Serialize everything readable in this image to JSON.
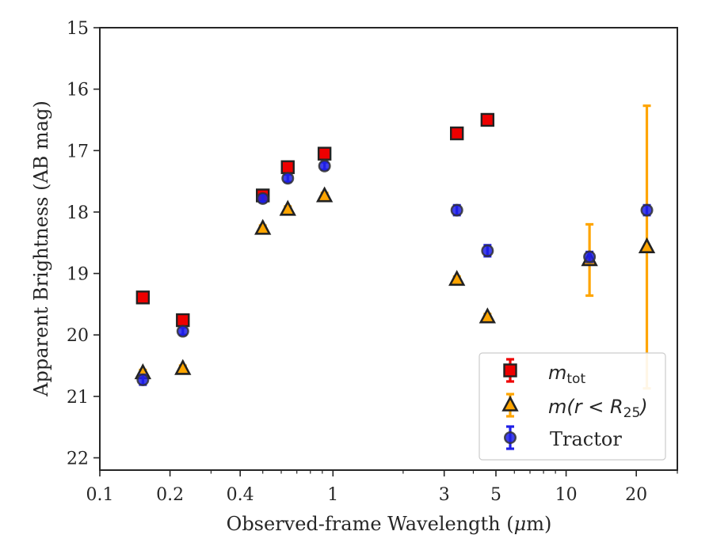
{
  "colors": {
    "mtot": "#ee0000",
    "mr25": "#ffa500",
    "tractor": "#1f1fe6",
    "mtot_err": "#ee0000",
    "mr25_err": "#ffa500",
    "tractor_err": "#1f1fe6",
    "edge": "#222222",
    "axis": "#262626"
  },
  "chart_data": {
    "type": "scatter",
    "xlabel_prefix": "Observed-frame Wavelength (",
    "xlabel_unit_mu": "μ",
    "xlabel_suffix": "m)",
    "ylabel": "Apparent Brightness (AB mag)",
    "xscale": "log",
    "xlim": [
      0.1,
      30
    ],
    "ylim": [
      22.2,
      15
    ],
    "y_inverted": true,
    "grid": false,
    "legend_position": "lower-right",
    "x_ticks": [
      {
        "value": 0.1,
        "label": "0.1"
      },
      {
        "value": 0.2,
        "label": "0.2"
      },
      {
        "value": 0.4,
        "label": "0.4"
      },
      {
        "value": 1,
        "label": "1"
      },
      {
        "value": 3,
        "label": "3"
      },
      {
        "value": 5,
        "label": "5"
      },
      {
        "value": 10,
        "label": "10"
      },
      {
        "value": 20,
        "label": "20"
      }
    ],
    "y_ticks": [
      {
        "value": 15,
        "label": "15"
      },
      {
        "value": 16,
        "label": "16"
      },
      {
        "value": 17,
        "label": "17"
      },
      {
        "value": 18,
        "label": "18"
      },
      {
        "value": 19,
        "label": "19"
      },
      {
        "value": 20,
        "label": "20"
      },
      {
        "value": 21,
        "label": "21"
      },
      {
        "value": 22,
        "label": "22"
      }
    ],
    "series": [
      {
        "key": "mtot",
        "marker": "square",
        "legend_main": "m",
        "legend_sub": "tot",
        "points": [
          {
            "x": 0.153,
            "y": 19.39,
            "err": 0.05
          },
          {
            "x": 0.227,
            "y": 19.76,
            "err": 0.05
          },
          {
            "x": 0.5,
            "y": 17.73,
            "err": 0.05
          },
          {
            "x": 0.64,
            "y": 17.27,
            "err": 0.05
          },
          {
            "x": 0.92,
            "y": 17.05,
            "err": 0.05
          },
          {
            "x": 3.4,
            "y": 16.72,
            "err": 0.05
          },
          {
            "x": 4.6,
            "y": 16.5,
            "err": 0.05
          }
        ]
      },
      {
        "key": "mr25",
        "marker": "triangle",
        "legend_main": "m(r < R",
        "legend_sub": "25",
        "legend_end": ")",
        "points": [
          {
            "x": 0.153,
            "y": 20.62,
            "err": 0.05
          },
          {
            "x": 0.227,
            "y": 20.55,
            "err": 0.05
          },
          {
            "x": 0.5,
            "y": 18.27,
            "err": 0.05
          },
          {
            "x": 0.64,
            "y": 17.96,
            "err": 0.05
          },
          {
            "x": 0.92,
            "y": 17.74,
            "err": 0.05
          },
          {
            "x": 3.4,
            "y": 19.1,
            "err": 0.05
          },
          {
            "x": 4.6,
            "y": 19.71,
            "err": 0.05
          },
          {
            "x": 12.6,
            "y": 18.78,
            "err": 0.58
          },
          {
            "x": 22.2,
            "y": 18.57,
            "err": 2.3
          }
        ]
      },
      {
        "key": "tractor",
        "marker": "circle",
        "legend_label": "Tractor",
        "points": [
          {
            "x": 0.153,
            "y": 20.73,
            "err": 0.08
          },
          {
            "x": 0.227,
            "y": 19.94,
            "err": 0.06
          },
          {
            "x": 0.5,
            "y": 17.78,
            "err": 0.06
          },
          {
            "x": 0.64,
            "y": 17.45,
            "err": 0.06
          },
          {
            "x": 0.92,
            "y": 17.25,
            "err": 0.06
          },
          {
            "x": 3.4,
            "y": 17.97,
            "err": 0.08
          },
          {
            "x": 4.6,
            "y": 18.63,
            "err": 0.09
          },
          {
            "x": 12.6,
            "y": 18.73,
            "err": 0.08
          },
          {
            "x": 22.2,
            "y": 17.97,
            "err": 0.08
          }
        ]
      }
    ]
  }
}
